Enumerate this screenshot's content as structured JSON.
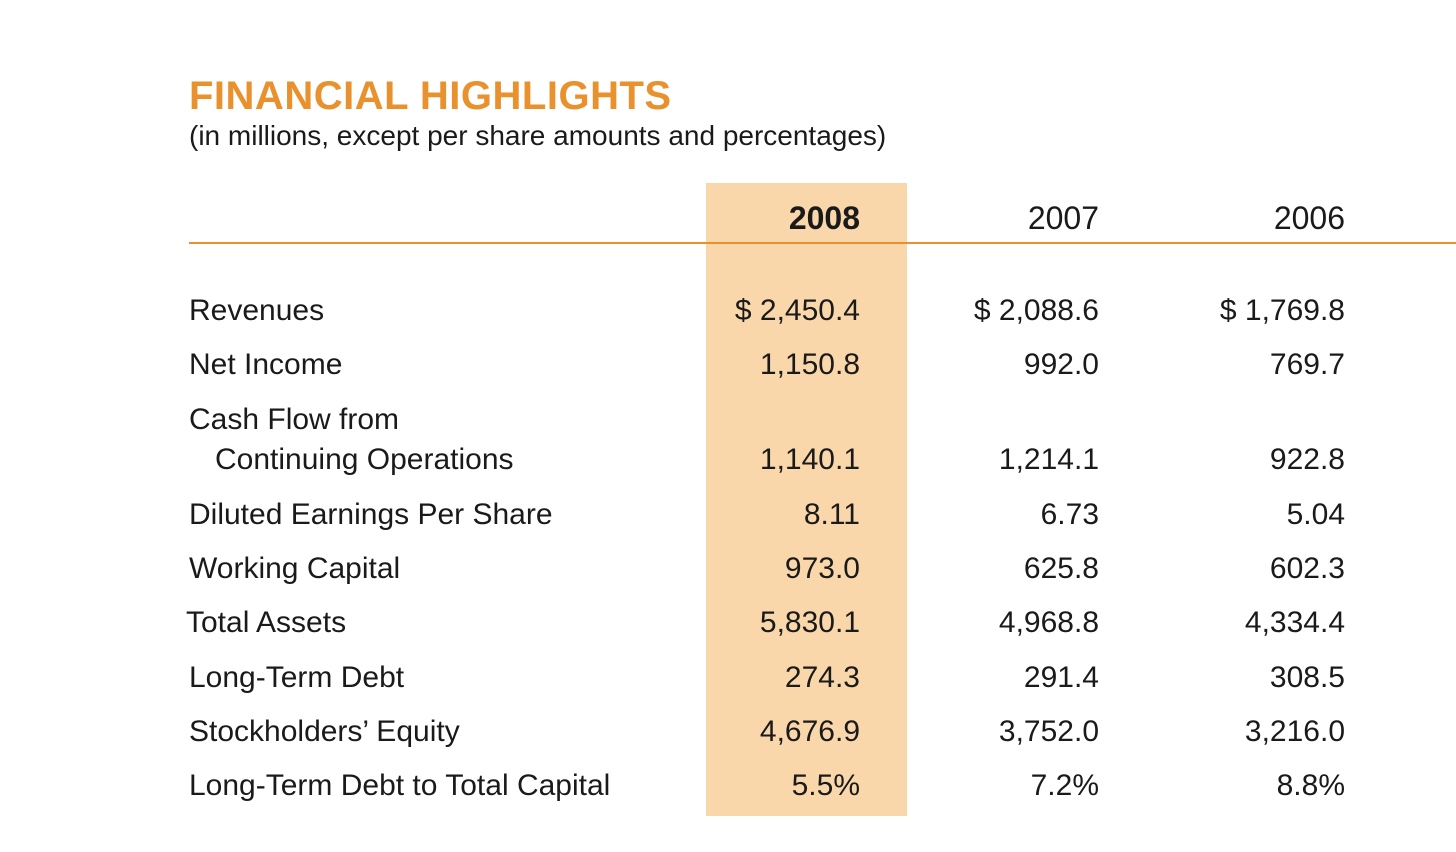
{
  "header": {
    "title": "FINANCIAL HIGHLIGHTS",
    "subtitle": "(in millions, except per share amounts and percentages)"
  },
  "colors": {
    "accent": "#e8912d",
    "highlight": "#f9d7aa",
    "text": "#1a1a1a"
  },
  "table": {
    "columns": [
      "2008",
      "2007",
      "2006"
    ],
    "rows": [
      {
        "label": "Revenues",
        "label2": "",
        "values": [
          "$ 2,450.4",
          "$ 2,088.6",
          "$ 1,769.8"
        ]
      },
      {
        "label": "Net Income",
        "label2": "",
        "values": [
          "1,150.8",
          "992.0",
          "769.7"
        ]
      },
      {
        "label": "Cash Flow from",
        "label2": "Continuing Operations",
        "values": [
          "1,140.1",
          "1,214.1",
          "922.8"
        ]
      },
      {
        "label": "Diluted Earnings Per Share",
        "label2": "",
        "values": [
          "8.11",
          "6.73",
          "5.04"
        ]
      },
      {
        "label": "Working Capital",
        "label2": "",
        "values": [
          "973.0",
          "625.8",
          "602.3"
        ]
      },
      {
        "label": "Total Assets",
        "label2": "",
        "values": [
          "5,830.1",
          "4,968.8",
          "4,334.4"
        ]
      },
      {
        "label": "Long-Term Debt",
        "label2": "",
        "values": [
          "274.3",
          "291.4",
          "308.5"
        ]
      },
      {
        "label": "Stockholders’ Equity",
        "label2": "",
        "values": [
          "4,676.9",
          "3,752.0",
          "3,216.0"
        ]
      },
      {
        "label": "Long-Term Debt to Total Capital",
        "label2": "",
        "values": [
          "5.5%",
          "7.2%",
          "8.8%"
        ]
      }
    ]
  }
}
